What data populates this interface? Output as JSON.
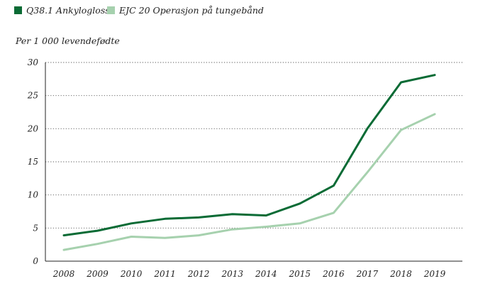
{
  "chart_data": {
    "type": "line",
    "title": "",
    "ylabel": "Per 1 000 levendefødte",
    "xlabel": "",
    "ylim": [
      0,
      30
    ],
    "yticks": [
      0,
      5,
      10,
      15,
      20,
      25,
      30
    ],
    "grid": true,
    "legend_position": "top-left",
    "x": [
      "2008",
      "2009",
      "2010",
      "2011",
      "2012",
      "2013",
      "2014",
      "2015",
      "2016",
      "2017",
      "2018",
      "2019"
    ],
    "series": [
      {
        "name": "Q38.1 Ankyloglossi",
        "color": "#0a6b35",
        "values": [
          3.9,
          4.6,
          5.7,
          6.4,
          6.6,
          7.1,
          6.9,
          8.7,
          11.4,
          20.0,
          27.0,
          28.1
        ]
      },
      {
        "name": "EJC 20 Operasjon på tungebånd",
        "color": "#a6d1ae",
        "values": [
          1.7,
          2.6,
          3.7,
          3.5,
          3.9,
          4.8,
          5.2,
          5.7,
          7.3,
          13.4,
          19.8,
          22.2
        ]
      }
    ]
  }
}
